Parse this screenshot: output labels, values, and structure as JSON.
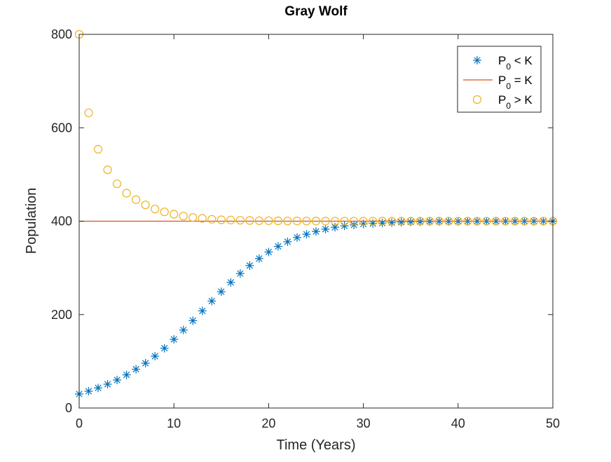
{
  "chart_data": {
    "type": "scatter",
    "title": "Gray Wolf",
    "xlabel": "Time (Years)",
    "ylabel": "Population",
    "xlim": [
      0,
      50
    ],
    "ylim": [
      0,
      800
    ],
    "xticks": [
      0,
      10,
      20,
      30,
      40,
      50
    ],
    "yticks": [
      0,
      200,
      400,
      600,
      800
    ],
    "grid": false,
    "legend_position": "top-right",
    "legend": [
      {
        "base": "P",
        "sub": "0",
        "rest": " < K"
      },
      {
        "base": "P",
        "sub": "0",
        "rest": " = K"
      },
      {
        "base": "P",
        "sub": "0",
        "rest": " > K"
      }
    ],
    "series": [
      {
        "marker": "asterisk",
        "color": "#0072BD",
        "x": [
          0,
          1,
          2,
          3,
          4,
          5,
          6,
          7,
          8,
          9,
          10,
          11,
          12,
          13,
          14,
          15,
          16,
          17,
          18,
          19,
          20,
          21,
          22,
          23,
          24,
          25,
          26,
          27,
          28,
          29,
          30,
          31,
          32,
          33,
          34,
          35,
          36,
          37,
          38,
          39,
          40,
          41,
          42,
          43,
          44,
          45,
          46,
          47,
          48,
          49,
          50
        ],
        "y": [
          30,
          36,
          43,
          51,
          60,
          71,
          83,
          96,
          111,
          128,
          147,
          167,
          187,
          208,
          229,
          249,
          269,
          288,
          305,
          320,
          334,
          346,
          356,
          365,
          372,
          378,
          383,
          387,
          390,
          392,
          394,
          395,
          396,
          397,
          398,
          398.5,
          399,
          399.3,
          399.5,
          399.6,
          399.7,
          399.8,
          399.85,
          399.9,
          399.92,
          399.94,
          399.95,
          399.96,
          399.97,
          399.98,
          399.99
        ]
      },
      {
        "marker": "line",
        "color": "#D95319",
        "x": [
          0,
          50
        ],
        "y": [
          400,
          400
        ]
      },
      {
        "marker": "circle",
        "color": "#EDB120",
        "x": [
          0,
          1,
          2,
          3,
          4,
          5,
          6,
          7,
          8,
          9,
          10,
          11,
          12,
          13,
          14,
          15,
          16,
          17,
          18,
          19,
          20,
          21,
          22,
          23,
          24,
          25,
          26,
          27,
          28,
          29,
          30,
          31,
          32,
          33,
          34,
          35,
          36,
          37,
          38,
          39,
          40,
          41,
          42,
          43,
          44,
          45,
          46,
          47,
          48,
          49,
          50
        ],
        "y": [
          800,
          632,
          554,
          510,
          480,
          460,
          446,
          435,
          426,
          420,
          415,
          411,
          408,
          406,
          404,
          403,
          402.5,
          402,
          401.5,
          401,
          401,
          400.7,
          400.5,
          400.4,
          400.3,
          400.2,
          400.2,
          400.1,
          400.1,
          400.1,
          400,
          400,
          400,
          400,
          400,
          400,
          400,
          400,
          400,
          400,
          400,
          400,
          400,
          400,
          400,
          400,
          400,
          400,
          400,
          400,
          400
        ]
      }
    ]
  }
}
